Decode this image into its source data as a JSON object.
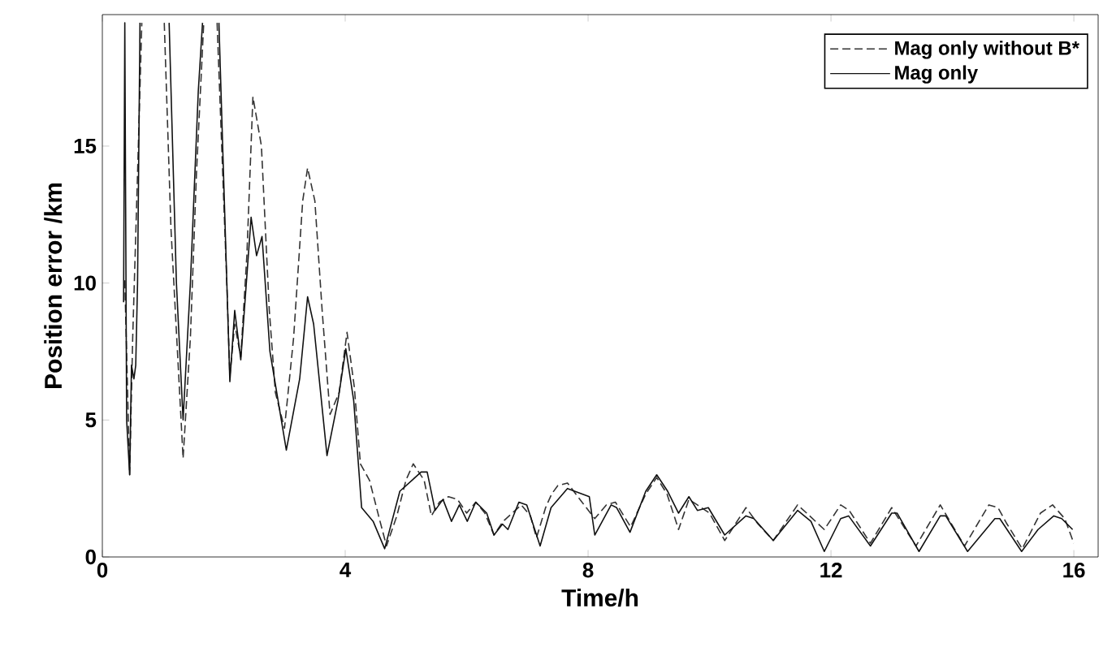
{
  "chart_data": {
    "type": "line",
    "xlabel": "Time/h",
    "ylabel": "Position error /km",
    "xlim": [
      0,
      16.4
    ],
    "ylim": [
      0,
      19.8
    ],
    "xticks": [
      0,
      4,
      8,
      12,
      16
    ],
    "yticks": [
      0,
      5,
      10,
      15
    ],
    "legend": "top right",
    "grid": false,
    "marker": "none",
    "series": [
      {
        "name": "Mag only without B*",
        "color": "#333333",
        "line_style": "dashed",
        "x": [
          0.37,
          0.45,
          0.5,
          0.58,
          0.65,
          0.9,
          1.02,
          1.13,
          1.33,
          1.45,
          1.55,
          1.67,
          1.8,
          1.89,
          2.05,
          2.1,
          2.18,
          2.28,
          2.38,
          2.48,
          2.62,
          2.75,
          2.85,
          3.0,
          3.15,
          3.3,
          3.38,
          3.5,
          3.62,
          3.75,
          3.9,
          4.03,
          4.15,
          4.25,
          4.4,
          4.55,
          4.68,
          4.85,
          5.0,
          5.12,
          5.3,
          5.42,
          5.55,
          5.7,
          5.85,
          6.0,
          6.15,
          6.3,
          6.45,
          6.6,
          6.75,
          6.9,
          7.05,
          7.15,
          7.3,
          7.4,
          7.5,
          7.66,
          7.9,
          8.11,
          8.3,
          8.45,
          8.7,
          8.95,
          9.13,
          9.3,
          9.49,
          9.66,
          9.8,
          10.0,
          10.25,
          10.6,
          10.8,
          11.05,
          11.45,
          11.6,
          11.89,
          12.16,
          12.3,
          12.65,
          13.0,
          13.4,
          13.8,
          14.2,
          14.6,
          14.75,
          14.9,
          15.15,
          15.45,
          15.65,
          15.85,
          16.0
        ],
        "values": [
          10.1,
          3.0,
          8,
          14,
          19.5,
          null,
          19.5,
          12,
          3.6,
          8,
          14,
          19.5,
          null,
          19.5,
          10,
          6.6,
          8.5,
          7.3,
          11,
          16.8,
          15,
          9,
          6,
          4.7,
          8,
          13,
          14.2,
          13,
          9,
          5.2,
          6,
          8.2,
          6.2,
          3.4,
          2.8,
          1.5,
          0.4,
          1.5,
          2.8,
          3.4,
          2.8,
          1.5,
          2.0,
          2.2,
          2.1,
          1.6,
          2.0,
          1.6,
          0.8,
          1.3,
          1.6,
          1.9,
          1.5,
          0.7,
          1.8,
          2.3,
          2.6,
          2.7,
          2.0,
          1.4,
          1.9,
          2.0,
          1.1,
          2.3,
          2.9,
          2.3,
          1.0,
          2.1,
          1.9,
          1.6,
          0.6,
          1.8,
          1.2,
          0.6,
          1.9,
          1.6,
          1.0,
          1.9,
          1.7,
          0.5,
          1.8,
          0.4,
          1.9,
          0.4,
          1.9,
          1.8,
          1.2,
          0.3,
          1.6,
          1.9,
          1.4,
          0.5
        ]
      },
      {
        "name": "Mag only",
        "color": "#111111",
        "line_style": "solid",
        "x": [
          0.35,
          0.37,
          0.4,
          0.45,
          0.48,
          0.52,
          0.55,
          0.58,
          0.62,
          0.9,
          1.1,
          1.22,
          1.33,
          1.45,
          1.58,
          1.65,
          1.8,
          1.92,
          2.1,
          2.18,
          2.28,
          2.45,
          2.54,
          2.63,
          2.76,
          3.03,
          3.25,
          3.38,
          3.48,
          3.7,
          3.88,
          4.01,
          4.14,
          4.27,
          4.46,
          4.65,
          4.9,
          5.25,
          5.35,
          5.48,
          5.61,
          5.75,
          5.88,
          6.01,
          6.15,
          6.33,
          6.45,
          6.59,
          6.68,
          6.86,
          6.99,
          7.21,
          7.39,
          7.66,
          8.02,
          8.11,
          8.38,
          8.47,
          8.69,
          8.95,
          9.13,
          9.31,
          9.49,
          9.66,
          9.8,
          9.98,
          10.25,
          10.6,
          10.73,
          11.05,
          11.45,
          11.67,
          11.89,
          12.16,
          12.29,
          12.65,
          13.0,
          13.09,
          13.45,
          13.8,
          13.89,
          14.25,
          14.7,
          14.78,
          15.14,
          15.41,
          15.67,
          15.8,
          15.98
        ],
        "values": [
          9.3,
          19.5,
          5,
          3.0,
          7,
          6.5,
          7,
          10,
          19.5,
          null,
          19.5,
          10,
          5.0,
          10,
          17,
          19.5,
          null,
          19.5,
          6.4,
          9.0,
          7.2,
          12.4,
          11.0,
          11.7,
          7.5,
          3.9,
          6.5,
          9.5,
          8.5,
          3.7,
          5.7,
          7.6,
          5.7,
          1.8,
          1.3,
          0.3,
          2.4,
          3.1,
          3.1,
          1.7,
          2.1,
          1.3,
          1.9,
          1.3,
          2.0,
          1.6,
          0.8,
          1.2,
          1.0,
          2.0,
          1.9,
          0.4,
          1.8,
          2.5,
          2.2,
          0.8,
          1.9,
          1.8,
          0.9,
          2.4,
          3.0,
          2.4,
          1.6,
          2.2,
          1.7,
          1.8,
          0.8,
          1.5,
          1.4,
          0.6,
          1.7,
          1.3,
          0.2,
          1.4,
          1.5,
          0.4,
          1.6,
          1.6,
          0.2,
          1.5,
          1.5,
          0.2,
          1.4,
          1.4,
          0.2,
          1.0,
          1.5,
          1.4,
          1.0
        ]
      }
    ]
  }
}
